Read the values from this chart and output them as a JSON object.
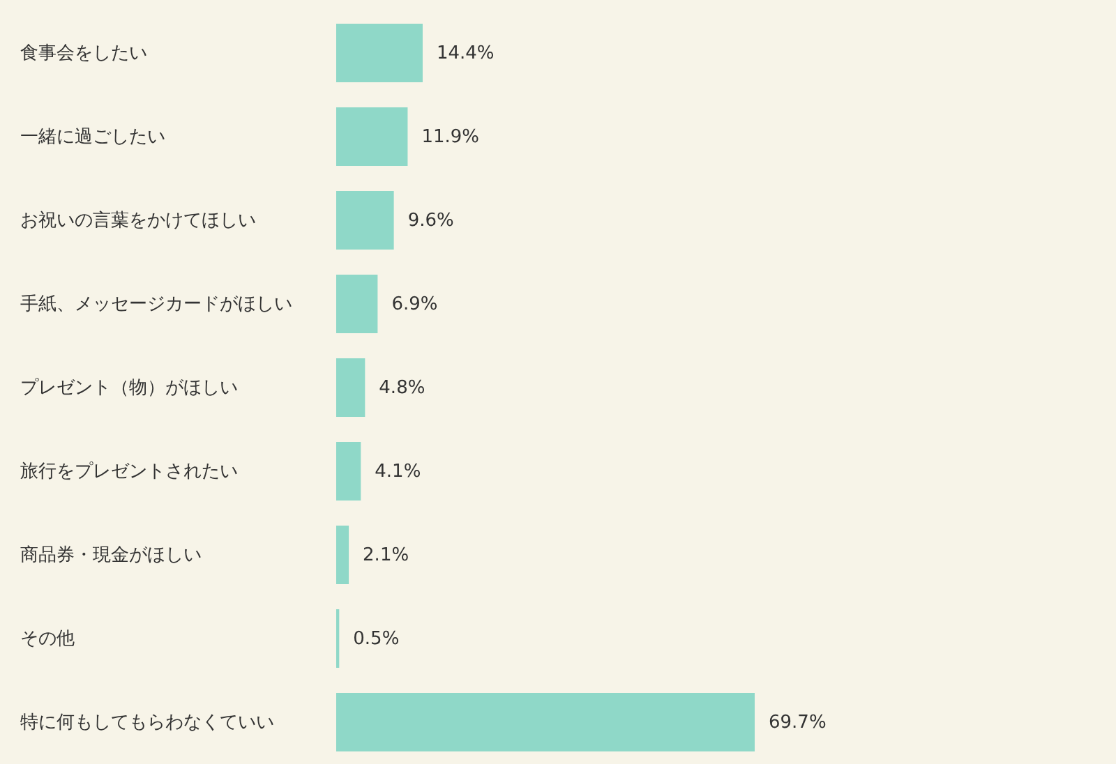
{
  "chart_data": {
    "type": "bar",
    "orientation": "horizontal",
    "categories": [
      "食事会をしたい",
      "一緒に過ごしたい",
      "お祝いの言葉をかけてほしい",
      "手紙、メッセージカードがほしい",
      "プレゼント（物）がほしい",
      "旅行をプレゼントされたい",
      "商品券・現金がほしい",
      "その他",
      "特に何もしてもらわなくていい"
    ],
    "values": [
      14.4,
      11.9,
      9.6,
      6.9,
      4.8,
      4.1,
      2.1,
      0.5,
      69.7
    ],
    "value_labels": [
      "14.4%",
      "11.9%",
      "9.6%",
      "6.9%",
      "4.8%",
      "4.1%",
      "2.1%",
      "0.5%",
      "69.7%"
    ],
    "color": "#8fd8c8",
    "tick_labels": "y"
  }
}
